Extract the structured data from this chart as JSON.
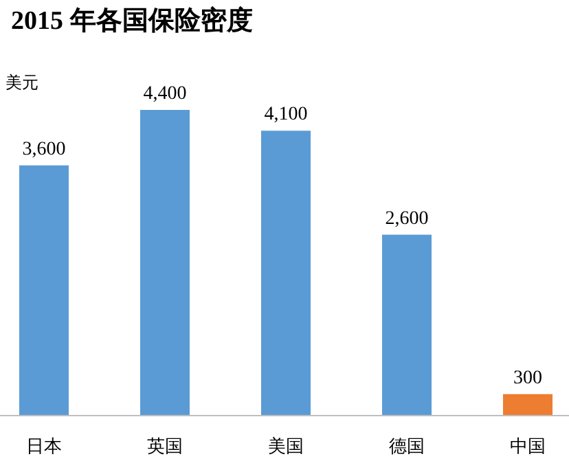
{
  "chart_data": {
    "type": "bar",
    "title": "2015 年各国保险密度",
    "ylabel": "美元",
    "categories": [
      "日本",
      "英国",
      "美国",
      "德国",
      "中国"
    ],
    "values": [
      3600,
      4400,
      4100,
      2600,
      300
    ],
    "value_labels": [
      "3,600",
      "4,400",
      "4,100",
      "2,600",
      "300"
    ],
    "colors": [
      "#5b9bd5",
      "#5b9bd5",
      "#5b9bd5",
      "#5b9bd5",
      "#ed7d31"
    ]
  }
}
